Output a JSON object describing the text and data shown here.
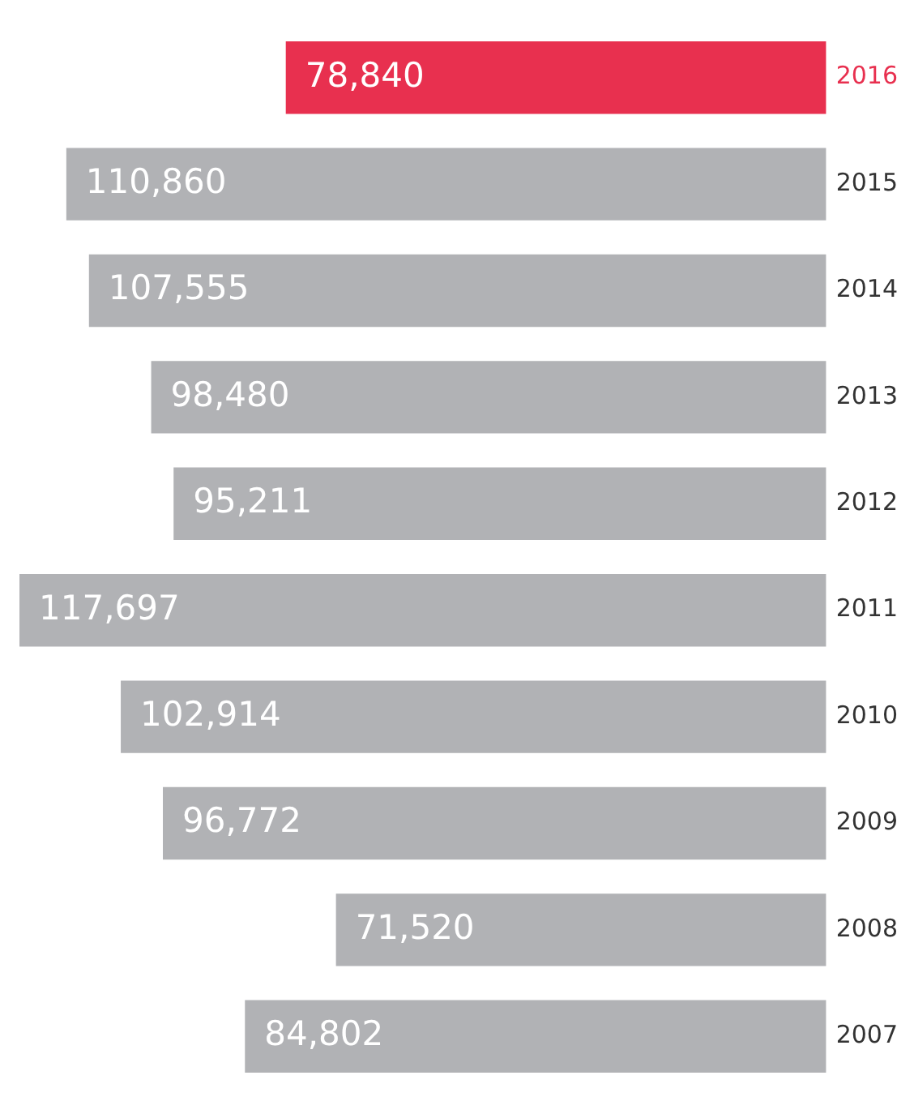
{
  "chart_data": {
    "type": "bar",
    "orientation": "horizontal",
    "categories": [
      "2016",
      "2015",
      "2014",
      "2013",
      "2012",
      "2011",
      "2010",
      "2009",
      "2008",
      "2007"
    ],
    "values": [
      78840,
      110860,
      107555,
      98480,
      95211,
      117697,
      102914,
      96772,
      71520,
      84802
    ],
    "colors": [
      "#e8304f",
      "#b1b2b5",
      "#b1b2b5",
      "#b1b2b5",
      "#b1b2b5",
      "#b1b2b5",
      "#b1b2b5",
      "#b1b2b5",
      "#b1b2b5",
      "#b1b2b5"
    ],
    "value_labels": [
      "78,840",
      "110,860",
      "107,555",
      "98,480",
      "95,211",
      "117,697",
      "102,914",
      "96,772",
      "71,520",
      "84,802"
    ],
    "legend": false
  }
}
